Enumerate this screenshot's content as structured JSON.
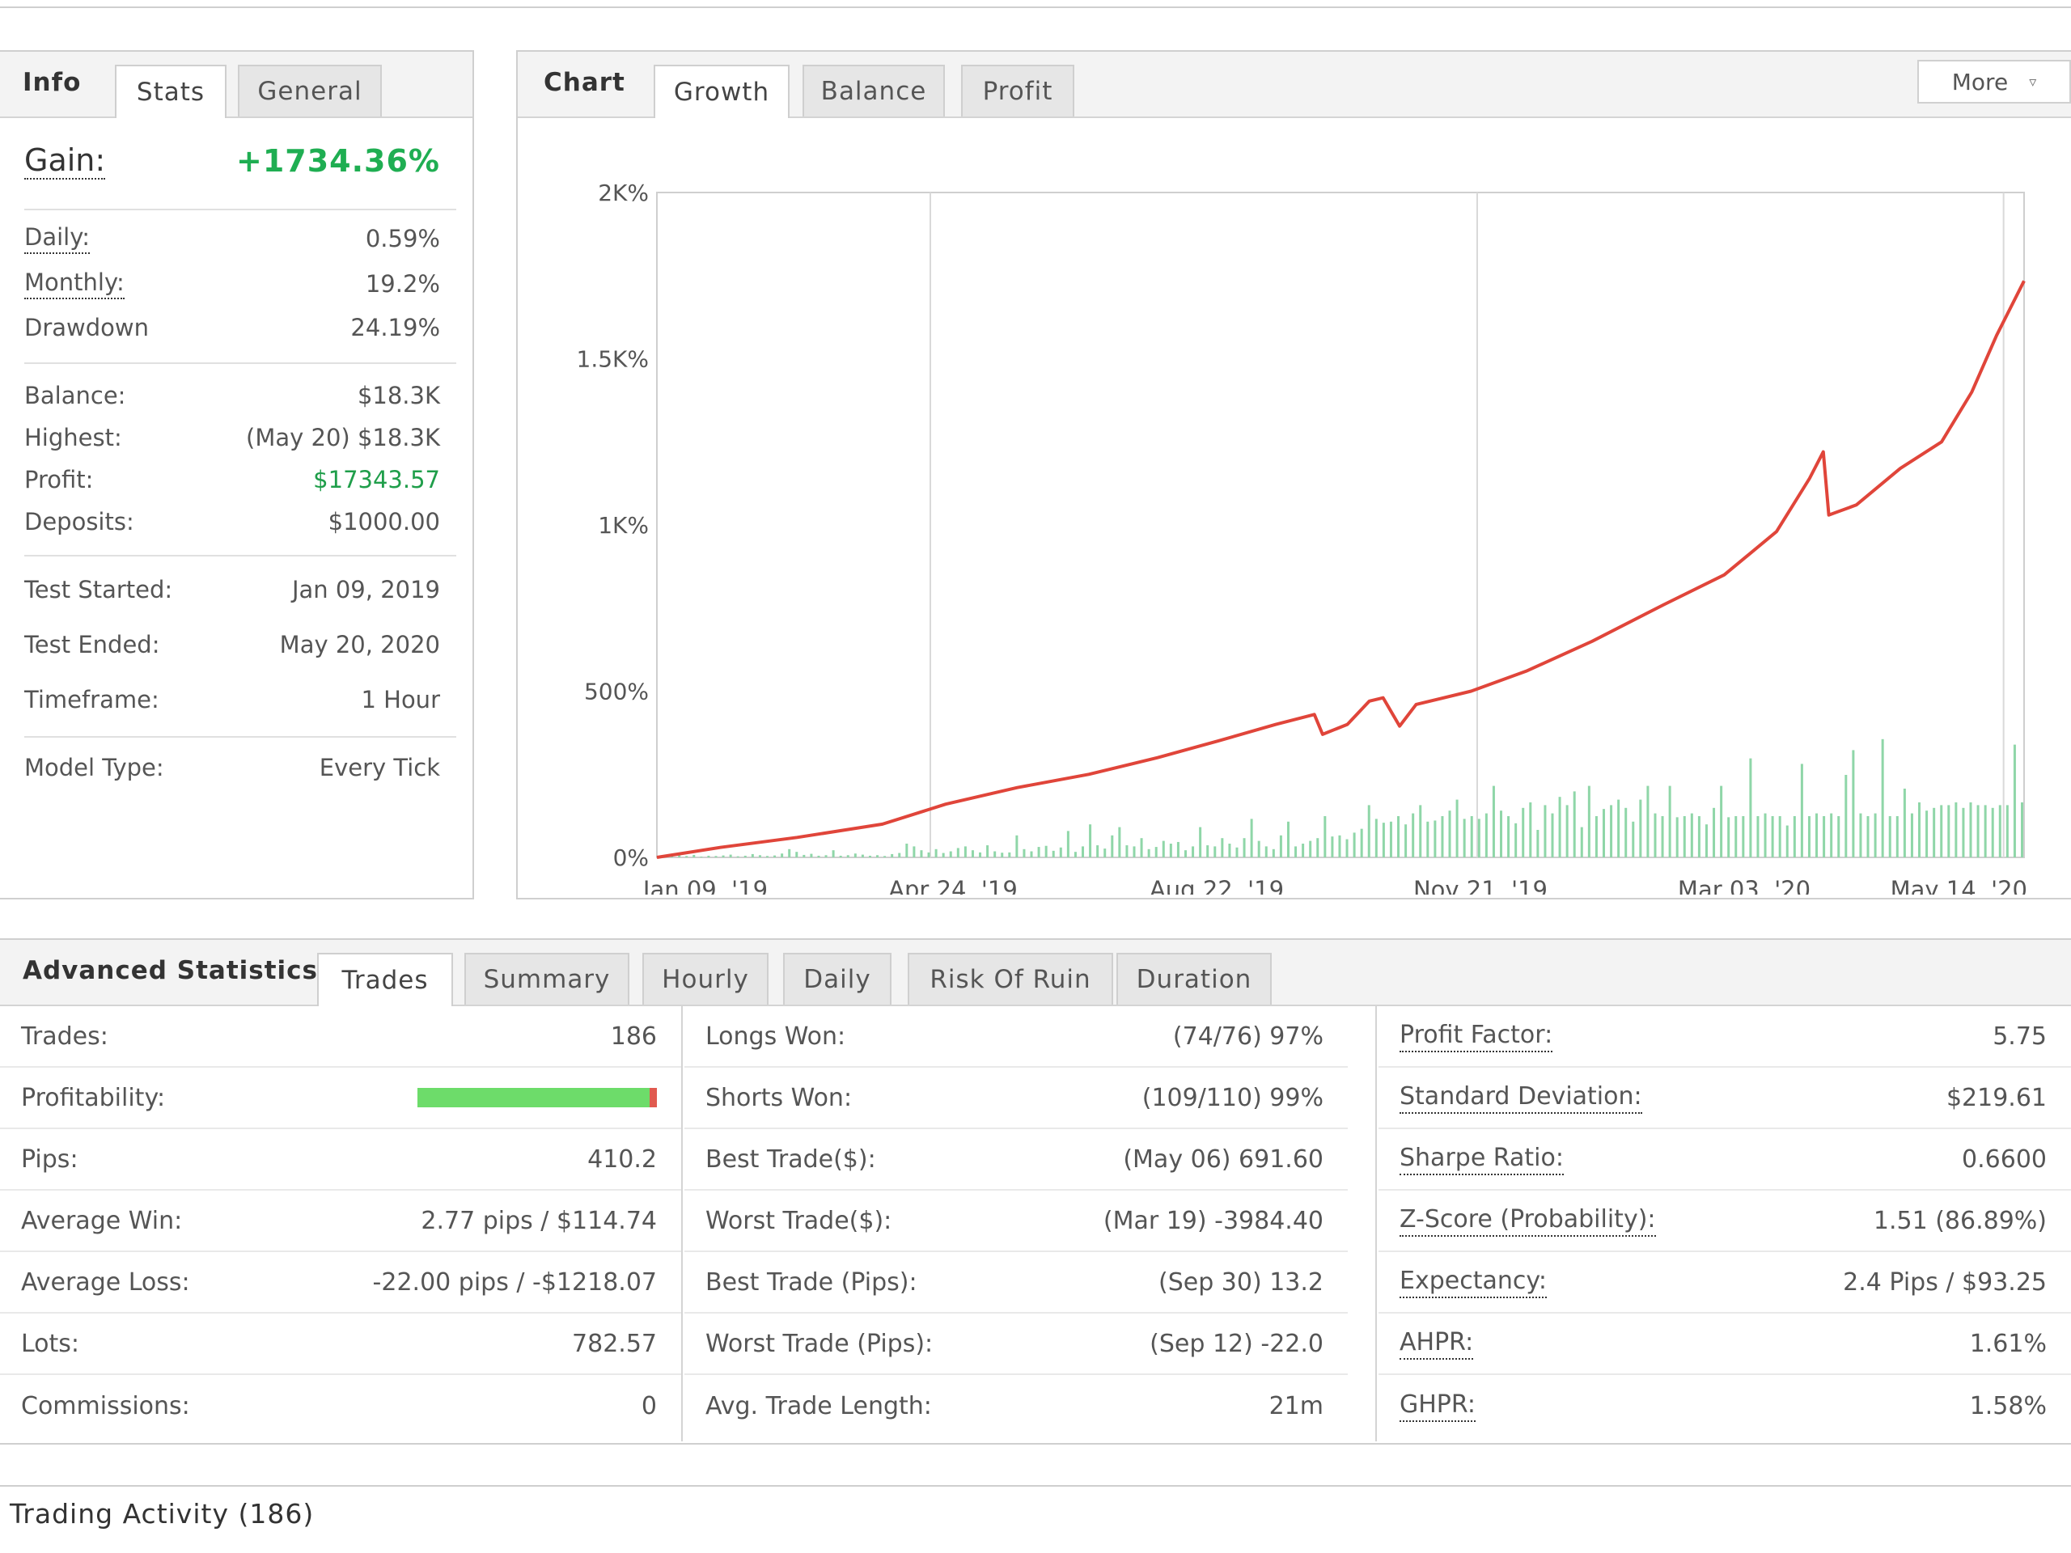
{
  "info": {
    "title": "Info",
    "tabs": [
      {
        "label": "Stats",
        "active": true
      },
      {
        "label": "General",
        "active": false
      }
    ],
    "gain": {
      "label": "Gain:",
      "value": "+1734.36%"
    },
    "rows1": [
      {
        "label": "Daily:",
        "value": "0.59%",
        "underline": true
      },
      {
        "label": "Monthly:",
        "value": "19.2%",
        "underline": true
      },
      {
        "label": "Drawdown",
        "value": "24.19%",
        "underline": false
      }
    ],
    "rows2": [
      {
        "label": "Balance:",
        "value": "$18.3K"
      },
      {
        "label": "Highest:",
        "value": "(May 20) $18.3K"
      },
      {
        "label": "Profit:",
        "value": "$17343.57",
        "green": true
      },
      {
        "label": "Deposits:",
        "value": "$1000.00"
      }
    ],
    "rows3": [
      {
        "label": "Test Started:",
        "value": "Jan 09, 2019"
      },
      {
        "label": "Test Ended:",
        "value": "May 20, 2020"
      },
      {
        "label": "Timeframe:",
        "value": "1 Hour"
      }
    ],
    "rows4": [
      {
        "label": "Model Type:",
        "value": "Every Tick"
      }
    ]
  },
  "chart": {
    "title": "Chart",
    "tabs": [
      {
        "label": "Growth",
        "active": true
      },
      {
        "label": "Balance",
        "active": false
      },
      {
        "label": "Profit",
        "active": false
      }
    ],
    "more_label": "More",
    "icons": {
      "more": "chevron-down-icon"
    }
  },
  "chart_data": {
    "type": "line",
    "title": "",
    "xlabel": "",
    "ylabel": "",
    "y_ticks": [
      "0%",
      "500%",
      "1K%",
      "1.5K%",
      "2K%"
    ],
    "x_ticks": [
      "Jan 09, '19",
      "Apr 24, '19",
      "Aug 22, '19",
      "Nov 21, '19",
      "Mar 03, '20",
      "May 14, '20"
    ],
    "ylim": [
      0,
      2000
    ],
    "grid": true,
    "colors": {
      "growth": "#e0453a",
      "volume": "#8fd6a8"
    },
    "x_range": [
      "2019-01-09",
      "2020-05-20"
    ],
    "growth_series": {
      "x": [
        "2019-01-09",
        "2019-02-01",
        "2019-03-01",
        "2019-04-01",
        "2019-04-24",
        "2019-05-20",
        "2019-06-15",
        "2019-07-10",
        "2019-08-01",
        "2019-08-22",
        "2019-09-05",
        "2019-09-08",
        "2019-09-17",
        "2019-09-25",
        "2019-09-30",
        "2019-10-06",
        "2019-10-12",
        "2019-11-01",
        "2019-11-21",
        "2019-12-15",
        "2020-01-10",
        "2020-02-01",
        "2020-02-20",
        "2020-03-03",
        "2020-03-08",
        "2020-03-10",
        "2020-03-20",
        "2020-04-05",
        "2020-04-20",
        "2020-05-01",
        "2020-05-10",
        "2020-05-20"
      ],
      "y": [
        0,
        30,
        60,
        100,
        160,
        210,
        250,
        300,
        350,
        400,
        430,
        370,
        400,
        470,
        480,
        395,
        460,
        500,
        560,
        650,
        760,
        850,
        980,
        1140,
        1220,
        1030,
        1060,
        1170,
        1250,
        1400,
        1570,
        1734
      ]
    },
    "volume_bars": [
      4,
      6,
      8,
      5,
      9,
      3,
      6,
      5,
      7,
      10,
      4,
      6,
      12,
      8,
      5,
      7,
      14,
      30,
      20,
      9,
      13,
      6,
      8,
      26,
      6,
      8,
      14,
      10,
      6,
      8,
      5,
      12,
      16,
      50,
      40,
      26,
      18,
      30,
      16,
      22,
      34,
      40,
      26,
      18,
      44,
      22,
      17,
      18,
      80,
      30,
      22,
      38,
      42,
      24,
      36,
      96,
      20,
      40,
      120,
      44,
      32,
      80,
      110,
      44,
      40,
      70,
      30,
      38,
      60,
      50,
      56,
      26,
      40,
      110,
      44,
      40,
      70,
      50,
      36,
      70,
      140,
      60,
      40,
      30,
      80,
      130,
      40,
      50,
      60,
      70,
      150,
      76,
      80,
      66,
      90,
      104,
      190,
      140,
      126,
      130,
      150,
      120,
      160,
      190,
      130,
      134,
      150,
      170,
      210,
      140,
      150,
      140,
      160,
      260,
      170,
      150,
      124,
      180,
      200,
      100,
      190,
      160,
      220,
      190,
      240,
      110,
      260,
      150,
      176,
      190,
      210,
      180,
      130,
      210,
      260,
      160,
      150,
      260,
      146,
      150,
      160,
      150,
      120,
      180,
      260,
      146,
      150,
      150,
      360,
      150,
      160,
      150,
      150,
      116,
      150,
      340,
      150,
      160,
      150,
      160,
      150,
      300,
      390,
      160,
      150,
      160,
      430,
      150,
      150,
      250,
      160,
      200,
      170,
      180,
      190,
      190,
      200,
      180,
      200,
      190,
      190,
      180,
      190,
      190,
      410,
      200
    ]
  },
  "advanced": {
    "title": "Advanced Statistics",
    "tabs": [
      {
        "label": "Trades",
        "active": true
      },
      {
        "label": "Summary",
        "active": false
      },
      {
        "label": "Hourly",
        "active": false
      },
      {
        "label": "Daily",
        "active": false
      },
      {
        "label": "Risk Of Ruin",
        "active": false
      },
      {
        "label": "Duration",
        "active": false
      }
    ],
    "col1": [
      {
        "label": "Trades:",
        "value": "186"
      },
      {
        "label": "Profitability:",
        "value": "",
        "bar": true
      },
      {
        "label": "Pips:",
        "value": "410.2"
      },
      {
        "label": "Average Win:",
        "value": "2.77 pips / $114.74"
      },
      {
        "label": "Average Loss:",
        "value": "-22.00 pips / -$1218.07"
      },
      {
        "label": "Lots:",
        "value": "782.57"
      },
      {
        "label": "Commissions:",
        "value": "0"
      }
    ],
    "profitability": {
      "win_fraction": 0.97,
      "loss_fraction": 0.03,
      "win_color": "#6ddc6a",
      "loss_color": "#e05a4f"
    },
    "col2": [
      {
        "label": "Longs Won:",
        "value": "(74/76) 97%"
      },
      {
        "label": "Shorts Won:",
        "value": "(109/110) 99%"
      },
      {
        "label": "Best Trade($):",
        "value": "(May 06) 691.60"
      },
      {
        "label": "Worst Trade($):",
        "value": "(Mar 19) -3984.40"
      },
      {
        "label": "Best Trade (Pips):",
        "value": "(Sep 30) 13.2"
      },
      {
        "label": "Worst Trade (Pips):",
        "value": "(Sep 12) -22.0"
      },
      {
        "label": "Avg. Trade Length:",
        "value": "21m"
      }
    ],
    "col3": [
      {
        "label": "Profit Factor:",
        "value": "5.75"
      },
      {
        "label": "Standard Deviation:",
        "value": "$219.61"
      },
      {
        "label": "Sharpe Ratio:",
        "value": "0.6600"
      },
      {
        "label": "Z-Score (Probability):",
        "value": "1.51 (86.89%)"
      },
      {
        "label": "Expectancy:",
        "value": "2.4 Pips / $93.25"
      },
      {
        "label": "AHPR:",
        "value": "1.61%"
      },
      {
        "label": "GHPR:",
        "value": "1.58%"
      }
    ]
  },
  "activity": {
    "title": "Trading Activity (186)"
  }
}
